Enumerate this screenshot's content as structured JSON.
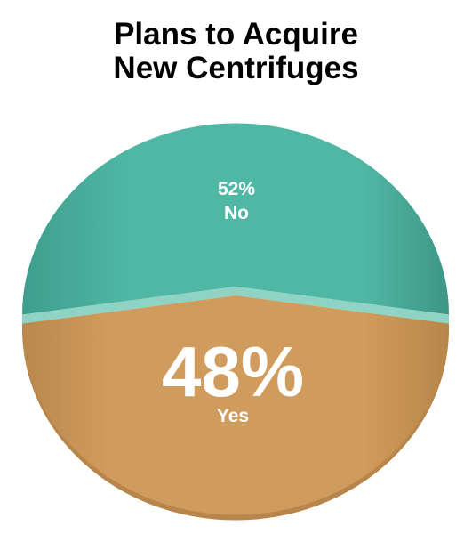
{
  "chart_data": {
    "type": "pie",
    "title": [
      "Plans to Acquire",
      "New Centrifuges"
    ],
    "slices": [
      {
        "label": "No",
        "value": 52,
        "value_text": "52%",
        "color": "#4fb5a3",
        "side_color": "#3f9a8a",
        "edge_color": "#8fd3c4"
      },
      {
        "label": "Yes",
        "value": 48,
        "value_text": "48%",
        "color": "#cf9b5c",
        "side_color": "#b8864a"
      }
    ],
    "legend": "none"
  }
}
